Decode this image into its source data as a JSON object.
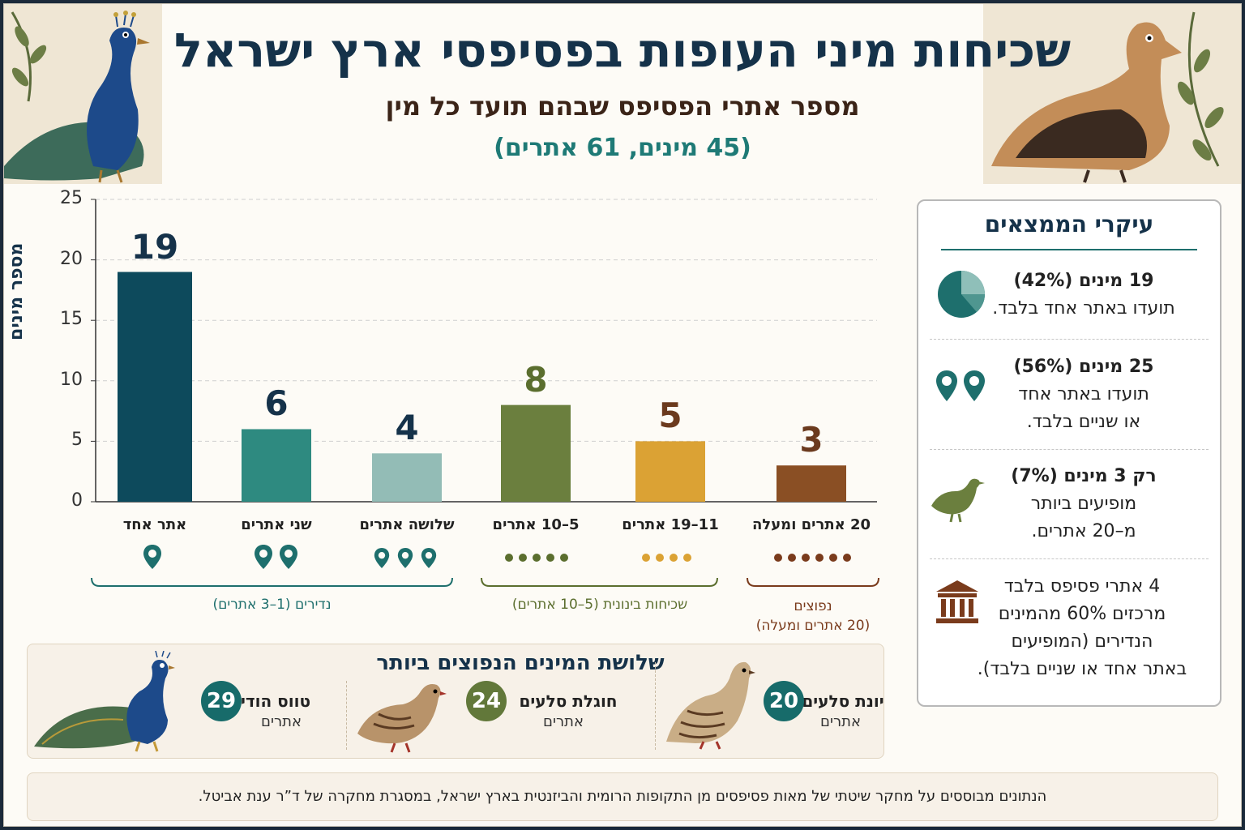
{
  "header": {
    "title": "שכיחות מיני העופות בפסיפסי ארץ ישראל",
    "subtitle": "מספר אתרי הפסיפס שבהם תועד כל מין",
    "subtitle2": "(45 מינים, 61 אתרים)"
  },
  "chart_data": {
    "type": "bar",
    "title": "",
    "xlabel": "",
    "ylabel": "מספר מינים",
    "ylim": [
      0,
      25
    ],
    "yticks": [
      0,
      5,
      10,
      15,
      20,
      25
    ],
    "grid": true,
    "categories": [
      "אתר אחד",
      "שני אתרים",
      "שלושה אתרים",
      "5–10 אתרים",
      "11–19 אתרים",
      "20 אתרים ומעלה"
    ],
    "values": [
      19,
      6,
      4,
      8,
      5,
      3
    ],
    "colors": [
      "#0d4a5c",
      "#2e8a80",
      "#93bcb6",
      "#6b7f3e",
      "#dba234",
      "#8a4f24"
    ]
  },
  "groups": [
    {
      "label": "נדירים (1–3 אתרים)",
      "color": "#1e6f6d"
    },
    {
      "label": "שכיחות בינונית (5–10 אתרים)",
      "color": "#5b6e2e"
    },
    {
      "label_line1": "נפוצים",
      "label_line2": "(20 אתרים ומעלה)",
      "color": "#7a3b1c"
    }
  ],
  "findings": {
    "title": "עיקרי הממצאים",
    "items": [
      {
        "line1": "19 מינים (42%)",
        "line2": "תועדו באתר אחד בלבד.",
        "icon": "pie-chart-icon"
      },
      {
        "line1": "25 מינים (56%)",
        "line2": "תועדו באתר אחד",
        "line3": "או שניים בלבד.",
        "icon": "location-pins-icon"
      },
      {
        "line1": "רק 3 מינים (7%)",
        "line2": "מופיעים ביותר",
        "line3": "מ–20 אתרים.",
        "icon": "partridge-icon"
      },
      {
        "line1": "4 אתרי פסיפס בלבד",
        "line2": "מרכזים 60% מהמינים",
        "line3": "הנדירים (המופיעים",
        "line4": "באתר אחד או שניים בלבד).",
        "icon": "museum-icon"
      }
    ]
  },
  "top_species": {
    "title": "שלושת המינים הנפוצים ביותר",
    "items": [
      {
        "name": "יונת סלעים",
        "count": "20",
        "unit": "אתרים",
        "color": "#176b6a"
      },
      {
        "name": "חוגלת סלעים",
        "count": "24",
        "unit": "אתרים",
        "color": "#62783a"
      },
      {
        "name": "טווס הודי",
        "count": "29",
        "unit": "אתרים",
        "color": "#176b6a"
      }
    ]
  },
  "footer": {
    "text": "הנתונים מבוססים על מחקר שיטתי של מאות פסיפסים מן התקופות הרומית והביזנטית בארץ ישראל, במסגרת מחקרה של ד”ר ענת אביטל."
  }
}
